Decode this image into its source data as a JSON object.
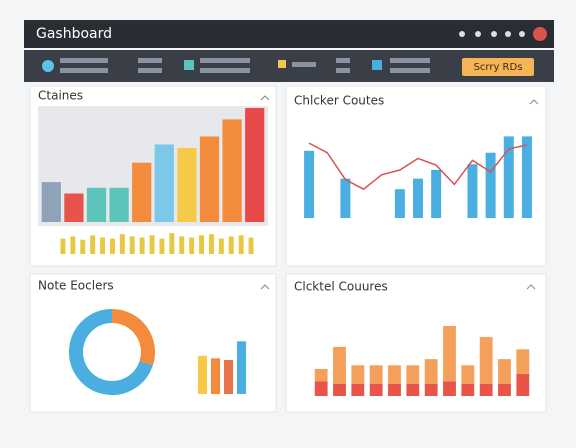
{
  "header": {
    "title": "Gashboard",
    "button": "Scrry RDs"
  },
  "chart_data": [
    {
      "type": "bar",
      "title": "Ctaines",
      "values": [
        35,
        25,
        30,
        30,
        52,
        68,
        65,
        75,
        90,
        100
      ],
      "colors": [
        "#8fa3b8",
        "#e8534a",
        "#5cc4b8",
        "#5cc4b8",
        "#f28c3c",
        "#7cc8e8",
        "#f7c948",
        "#f28c3c",
        "#f28c3c",
        "#e84a4a"
      ],
      "ylim": [
        0,
        100
      ],
      "mini_values": [
        70,
        80,
        65,
        85,
        75,
        70,
        90,
        80,
        75,
        85,
        70,
        95,
        80,
        75,
        85,
        90,
        70,
        80,
        85,
        75
      ],
      "mini_color": "#e8c840",
      "mini_ylim": [
        0,
        100
      ]
    },
    {
      "type": "combo",
      "title": "Chlcker Coutes",
      "values": [
        70,
        null,
        41,
        null,
        null,
        30,
        41,
        50,
        null,
        56,
        68,
        85,
        85
      ],
      "color": "#4aaee0",
      "line_values": [
        78,
        68,
        40,
        30,
        45,
        50,
        62,
        55,
        35,
        60,
        48,
        72,
        76
      ],
      "line_color": "#d9534f",
      "ylim": [
        0,
        100
      ]
    },
    {
      "type": "donut",
      "title": "Note Eoclers",
      "values": [
        30,
        70
      ],
      "colors": [
        "#f28c3c",
        "#4aaee0"
      ],
      "bar_values": [
        45,
        42,
        40,
        62
      ],
      "bar_colors": [
        "#f7c948",
        "#f28c3c",
        "#e8734a",
        "#4aaee0"
      ],
      "bar_ylim": [
        0,
        80
      ]
    },
    {
      "type": "stacked",
      "title": "Clcktel Couures",
      "series": [
        {
          "color": "#e8534a",
          "values": [
            12,
            10,
            10,
            10,
            10,
            10,
            10,
            12,
            10,
            10,
            10,
            18
          ]
        },
        {
          "color": "#f5a05a",
          "values": [
            10,
            30,
            15,
            15,
            15,
            15,
            20,
            45,
            15,
            38,
            20,
            20
          ]
        }
      ],
      "ylim": [
        0,
        70
      ]
    }
  ]
}
